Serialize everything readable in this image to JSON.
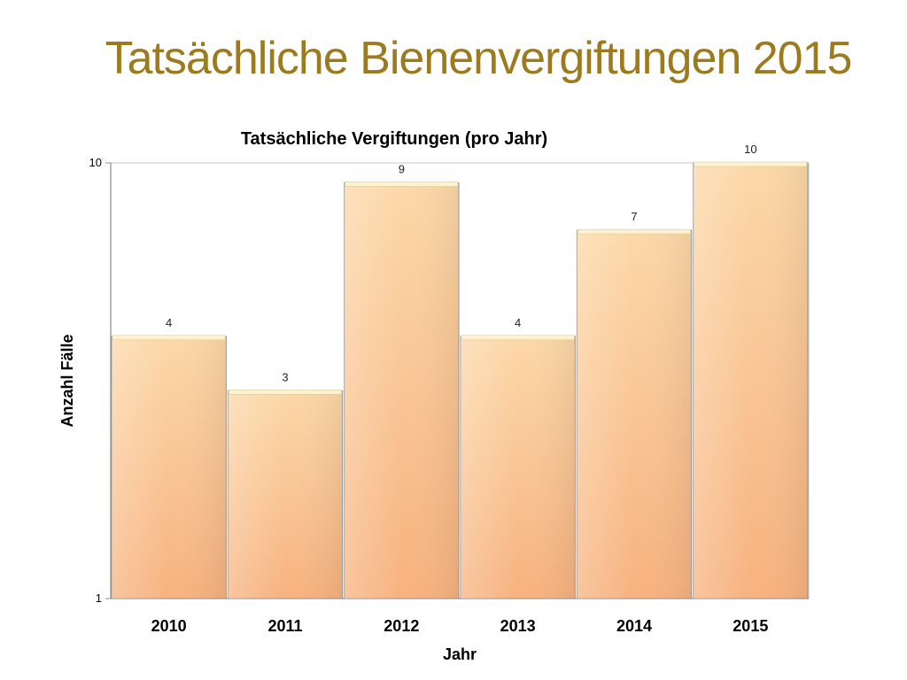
{
  "slide": {
    "title": "Tatsächliche Bienenvergiftungen 2015"
  },
  "colors": {
    "title": "#9c7a1e",
    "bar_top": "#fcd8a8",
    "bar_bottom": "#f7b27f",
    "bar_stroke": "#9a9a9a",
    "bar_cap": "#fff3cf"
  },
  "chart_data": {
    "type": "bar",
    "title": "Tatsächliche Vergiftungen (pro Jahr)",
    "xlabel": "Jahr",
    "ylabel": "Anzahl Fälle",
    "categories": [
      "2010",
      "2011",
      "2012",
      "2013",
      "2014",
      "2015"
    ],
    "values": [
      4,
      3,
      9,
      4,
      7,
      10
    ],
    "data_labels": [
      "4",
      "3",
      "9",
      "4",
      "7",
      "10"
    ],
    "ylim": [
      1,
      10
    ],
    "yscale": "log",
    "yticks": [
      "1",
      "10"
    ],
    "grid": false,
    "legend": "none"
  }
}
